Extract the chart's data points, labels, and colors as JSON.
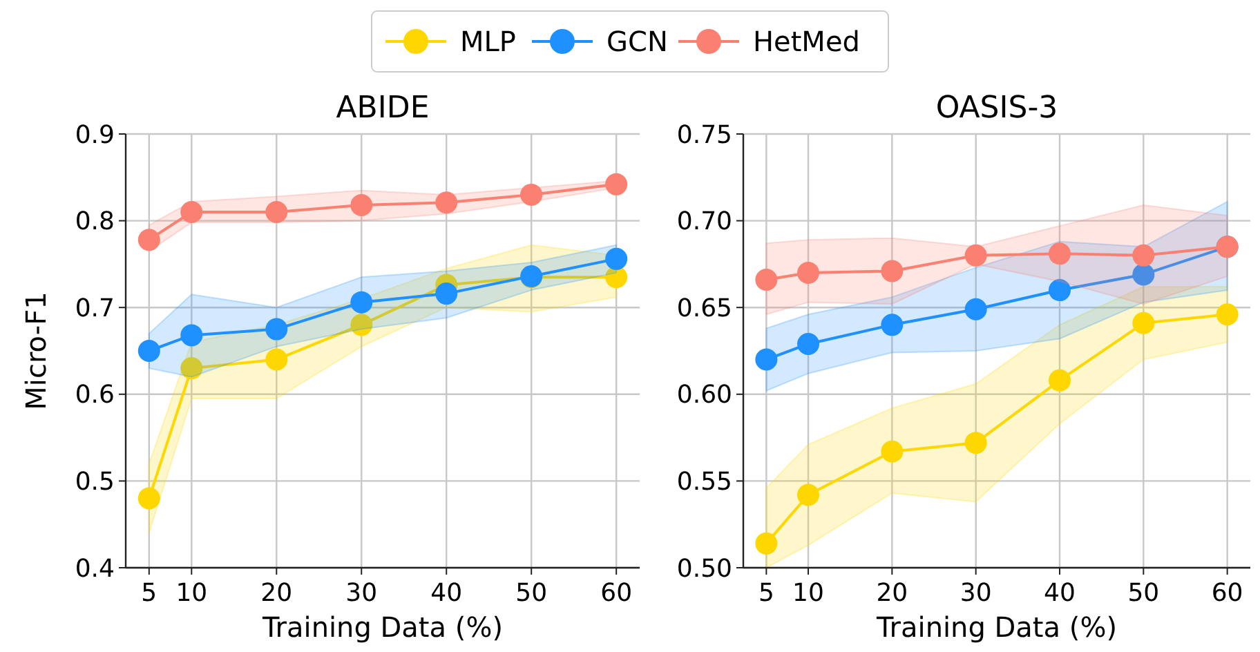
{
  "chart_data": [
    {
      "type": "line",
      "title": "ABIDE",
      "xlabel": "Training Data (%)",
      "ylabel": "Micro-F1",
      "x": [
        5,
        10,
        20,
        30,
        40,
        50,
        60
      ],
      "xlim": [
        2.25,
        62.75
      ],
      "xticks": [
        5,
        10,
        20,
        30,
        40,
        50,
        60
      ],
      "ylim": [
        0.4,
        0.9
      ],
      "yticks": [
        0.4,
        0.5,
        0.6,
        0.7,
        0.8,
        0.9
      ],
      "grid": true,
      "marker": "circle",
      "legend": "top",
      "series": [
        {
          "name": "MLP",
          "color": "#ffd700",
          "values": [
            0.48,
            0.63,
            0.64,
            0.68,
            0.726,
            0.735,
            0.735
          ],
          "lower": [
            0.44,
            0.595,
            0.595,
            0.655,
            0.7,
            0.695,
            0.712
          ],
          "upper": [
            0.52,
            0.66,
            0.68,
            0.71,
            0.745,
            0.772,
            0.76
          ]
        },
        {
          "name": "GCN",
          "color": "#1e90ff",
          "values": [
            0.65,
            0.668,
            0.675,
            0.706,
            0.716,
            0.736,
            0.756
          ],
          "lower": [
            0.63,
            0.62,
            0.655,
            0.675,
            0.688,
            0.72,
            0.74
          ],
          "upper": [
            0.67,
            0.715,
            0.7,
            0.735,
            0.742,
            0.752,
            0.772
          ]
        },
        {
          "name": "HetMed",
          "color": "#fa8072",
          "values": [
            0.778,
            0.81,
            0.81,
            0.818,
            0.821,
            0.83,
            0.842
          ],
          "lower": [
            0.765,
            0.798,
            0.798,
            0.8,
            0.808,
            0.822,
            0.838
          ],
          "upper": [
            0.795,
            0.822,
            0.828,
            0.835,
            0.83,
            0.838,
            0.846
          ]
        }
      ]
    },
    {
      "type": "line",
      "title": "OASIS-3",
      "xlabel": "Training Data (%)",
      "x": [
        5,
        10,
        20,
        30,
        40,
        50,
        60
      ],
      "xlim": [
        2.25,
        62.75
      ],
      "xticks": [
        5,
        10,
        20,
        30,
        40,
        50,
        60
      ],
      "ylim": [
        0.5,
        0.75
      ],
      "yticks": [
        {
          "value": 0.5,
          "label": "0.50"
        },
        {
          "value": 0.55,
          "label": "0.55"
        },
        {
          "value": 0.6,
          "label": "0.60"
        },
        {
          "value": 0.65,
          "label": "0.65"
        },
        {
          "value": 0.7,
          "label": "0.70"
        },
        {
          "value": 0.75,
          "label": "0.75"
        }
      ],
      "grid": true,
      "marker": "circle",
      "series": [
        {
          "color": "#ffd700",
          "values": [
            0.514,
            0.542,
            0.567,
            0.572,
            0.608,
            0.641,
            0.646
          ],
          "lower": [
            0.5,
            0.513,
            0.543,
            0.538,
            0.583,
            0.62,
            0.63
          ],
          "upper": [
            0.546,
            0.571,
            0.592,
            0.606,
            0.64,
            0.662,
            0.662
          ]
        },
        {
          "color": "#1e90ff",
          "values": [
            0.62,
            0.629,
            0.64,
            0.649,
            0.66,
            0.669,
            0.685
          ],
          "lower": [
            0.602,
            0.612,
            0.624,
            0.625,
            0.632,
            0.653,
            0.66
          ],
          "upper": [
            0.638,
            0.646,
            0.656,
            0.673,
            0.688,
            0.685,
            0.711
          ]
        },
        {
          "color": "#fa8072",
          "values": [
            0.666,
            0.67,
            0.671,
            0.68,
            0.681,
            0.68,
            0.685
          ],
          "lower": [
            0.646,
            0.653,
            0.652,
            0.675,
            0.665,
            0.652,
            0.668
          ],
          "upper": [
            0.687,
            0.689,
            0.69,
            0.685,
            0.697,
            0.709,
            0.703
          ]
        }
      ]
    }
  ]
}
